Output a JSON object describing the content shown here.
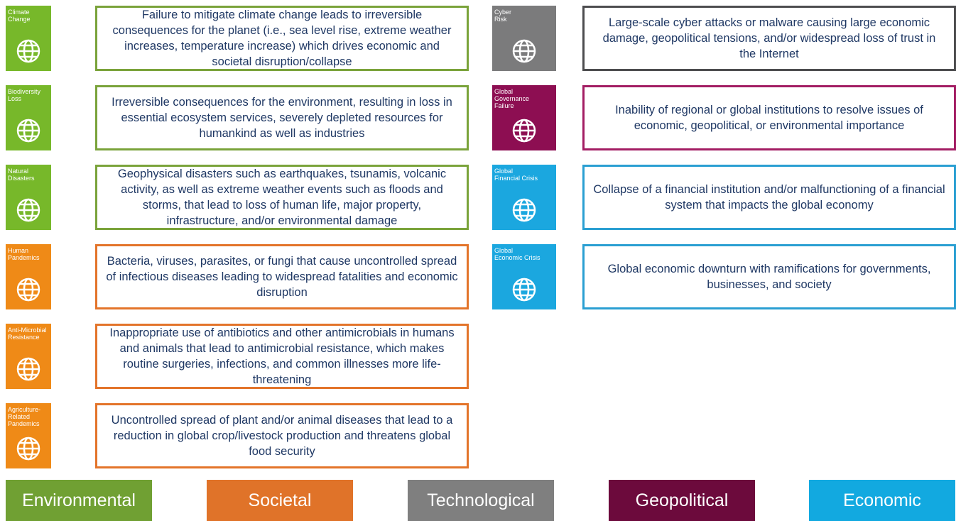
{
  "risks_left": [
    {
      "label_lines": [
        "Climate",
        "Change"
      ],
      "description": "Failure to mitigate climate change leads to irreversible consequences for the planet (i.e., sea level rise, extreme weather increases, temperature increase) which drives economic and societal disruption/collapse",
      "icon_color": "#77b82a",
      "border_color": "#7aa33a"
    },
    {
      "label_lines": [
        "Biodiversity",
        "Loss"
      ],
      "description": "Irreversible consequences for the environment, resulting in loss in essential ecosystem services, severely depleted resources for humankind as well as industries",
      "icon_color": "#77b82a",
      "border_color": "#7aa33a"
    },
    {
      "label_lines": [
        "Natural",
        "Disasters"
      ],
      "description": "Geophysical disasters such as earthquakes, tsunamis, volcanic activity, as well as extreme weather events such as floods and storms, that lead to loss of human life, major property, infrastructure, and/or environmental damage",
      "icon_color": "#77b82a",
      "border_color": "#7aa33a"
    },
    {
      "label_lines": [
        "Human",
        "Pandemics"
      ],
      "description": "Bacteria, viruses, parasites, or fungi that cause uncontrolled spread of infectious diseases leading to widespread fatalities and economic disruption",
      "icon_color": "#ef8a17",
      "border_color": "#e3742a"
    },
    {
      "label_lines": [
        "Anti-Microbial",
        "Resistance"
      ],
      "description": "Inappropriate use of antibiotics and other antimicrobials in humans and animals that lead to antimicrobial resistance, which makes routine surgeries, infections, and common illnesses more life-threatening",
      "icon_color": "#ef8a17",
      "border_color": "#e3742a"
    },
    {
      "label_lines": [
        "Agriculture-",
        "Related",
        "Pandemics"
      ],
      "description": "Uncontrolled spread of plant and/or animal diseases that lead to a reduction in global crop/livestock production and threatens global food security",
      "icon_color": "#ef8a17",
      "border_color": "#e3742a"
    }
  ],
  "risks_right": [
    {
      "label_lines": [
        "Cyber",
        "Risk"
      ],
      "description": "Large-scale cyber attacks or malware causing large economic damage, geopolitical tensions, and/or widespread loss of trust in the Internet",
      "icon_color": "#7b7b7c",
      "border_color": "#4d4d4f"
    },
    {
      "label_lines": [
        "Global",
        "Governance",
        "Failure"
      ],
      "description": "Inability of regional or global institutions to resolve issues of economic, geopolitical, or environmental importance",
      "icon_color": "#8d0e52",
      "border_color": "#a31d63"
    },
    {
      "label_lines": [
        "Global",
        "Financial Crisis"
      ],
      "description": "Collapse of a financial institution and/or malfunctioning of a financial system that impacts the global economy",
      "icon_color": "#1ba7df",
      "border_color": "#2a9fd2"
    },
    {
      "label_lines": [
        "Global",
        "Economic Crisis"
      ],
      "description": "Global economic downturn with ramifications for governments, businesses, and society",
      "icon_color": "#1ba7df",
      "border_color": "#2a9fd2"
    }
  ],
  "legend": [
    {
      "name": "Environmental",
      "color": "#70a033"
    },
    {
      "name": "Societal",
      "color": "#e07329"
    },
    {
      "name": "Technological",
      "color": "#7f7f7f"
    },
    {
      "name": "Geopolitical",
      "color": "#6c0a3c"
    },
    {
      "name": "Economic",
      "color": "#12a9e0"
    }
  ]
}
